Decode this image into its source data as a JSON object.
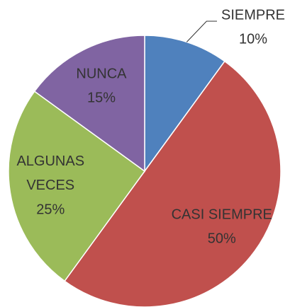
{
  "chart_data": {
    "type": "pie",
    "categories": [
      "SIEMPRE",
      "CASI SIEMPRE",
      "ALGUNAS VECES",
      "NUNCA"
    ],
    "values": [
      10,
      50,
      25,
      15
    ],
    "value_labels": [
      "10%",
      "50%",
      "25%",
      "15%"
    ],
    "colors": [
      "#4f81bd",
      "#c0504d",
      "#9bbb59",
      "#8064a2"
    ],
    "start_angle": 0,
    "direction": "clockwise"
  }
}
